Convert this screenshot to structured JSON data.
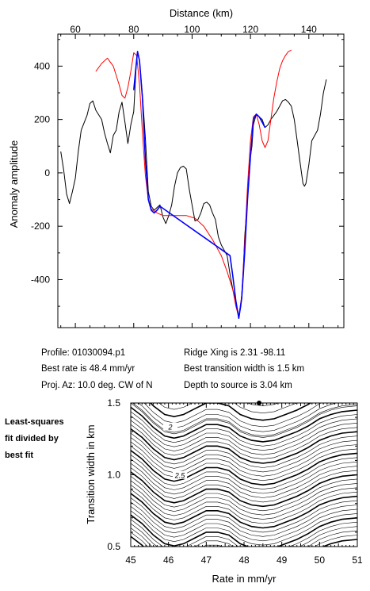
{
  "chart_data": [
    {
      "type": "line",
      "xlabel": "Distance (km)",
      "ylabel": "Anomaly amplitude",
      "xlim": [
        54,
        152
      ],
      "ylim": [
        -580,
        520
      ],
      "x_ticks": [
        60,
        80,
        100,
        120,
        140
      ],
      "y_ticks": [
        400,
        200,
        0,
        -200,
        -400
      ],
      "legend": "none",
      "grid": false,
      "series": [
        {
          "color": "#000000",
          "points": [
            [
              55,
              80
            ],
            [
              56,
              10
            ],
            [
              57,
              -80
            ],
            [
              58,
              -115
            ],
            [
              59,
              -70
            ],
            [
              60,
              -20
            ],
            [
              61,
              80
            ],
            [
              62,
              160
            ],
            [
              64,
              215
            ],
            [
              65,
              260
            ],
            [
              66,
              270
            ],
            [
              67,
              235
            ],
            [
              69,
              200
            ],
            [
              70,
              150
            ],
            [
              71,
              110
            ],
            [
              72,
              75
            ],
            [
              73,
              140
            ],
            [
              74,
              160
            ],
            [
              75,
              230
            ],
            [
              76,
              265
            ],
            [
              77,
              190
            ],
            [
              78,
              110
            ],
            [
              79,
              180
            ],
            [
              80,
              230
            ],
            [
              80.8,
              390
            ],
            [
              81.3,
              455
            ],
            [
              82,
              420
            ],
            [
              83,
              290
            ],
            [
              84,
              130
            ],
            [
              85,
              -70
            ],
            [
              86,
              -125
            ],
            [
              87,
              -140
            ],
            [
              88,
              -130
            ],
            [
              89,
              -120
            ],
            [
              90,
              -165
            ],
            [
              91,
              -190
            ],
            [
              92,
              -160
            ],
            [
              93,
              -120
            ],
            [
              94,
              -50
            ],
            [
              95,
              0
            ],
            [
              96,
              20
            ],
            [
              97,
              25
            ],
            [
              98,
              15
            ],
            [
              99,
              -60
            ],
            [
              100,
              -120
            ],
            [
              101,
              -180
            ],
            [
              102,
              -175
            ],
            [
              103,
              -150
            ],
            [
              104,
              -115
            ],
            [
              105,
              -110
            ],
            [
              106,
              -120
            ],
            [
              107,
              -150
            ],
            [
              108,
              -175
            ],
            [
              109,
              -240
            ],
            [
              110,
              -270
            ],
            [
              111,
              -290
            ],
            [
              112,
              -310
            ],
            [
              113,
              -380
            ],
            [
              114,
              -440
            ],
            [
              115,
              -480
            ],
            [
              115.5,
              -510
            ],
            [
              116,
              -540
            ],
            [
              116.7,
              -500
            ],
            [
              117.5,
              -380
            ],
            [
              118,
              -240
            ],
            [
              119,
              -100
            ],
            [
              120,
              60
            ],
            [
              120.5,
              100
            ],
            [
              121,
              180
            ],
            [
              122,
              220
            ],
            [
              123,
              210
            ],
            [
              124,
              200
            ],
            [
              125,
              170
            ],
            [
              126,
              180
            ],
            [
              127,
              200
            ],
            [
              128,
              215
            ],
            [
              129,
              230
            ],
            [
              130,
              250
            ],
            [
              131,
              270
            ],
            [
              132,
              275
            ],
            [
              133,
              265
            ],
            [
              134,
              250
            ],
            [
              135,
              200
            ],
            [
              136,
              120
            ],
            [
              137,
              40
            ],
            [
              138,
              -40
            ],
            [
              138.5,
              -50
            ],
            [
              139,
              -40
            ],
            [
              140,
              30
            ],
            [
              141,
              120
            ],
            [
              142,
              140
            ],
            [
              143,
              160
            ],
            [
              144,
              220
            ],
            [
              145,
              300
            ],
            [
              146,
              350
            ]
          ]
        },
        {
          "color": "#ff0000",
          "points": [
            [
              67,
              380
            ],
            [
              69,
              410
            ],
            [
              71,
              430
            ],
            [
              73,
              400
            ],
            [
              75,
              330
            ],
            [
              76,
              290
            ],
            [
              77,
              280
            ],
            [
              78,
              320
            ],
            [
              79,
              380
            ],
            [
              80,
              450
            ],
            [
              81,
              440
            ],
            [
              82,
              330
            ],
            [
              83,
              150
            ],
            [
              84,
              -10
            ],
            [
              85,
              -100
            ],
            [
              86,
              -135
            ],
            [
              88,
              -150
            ],
            [
              90,
              -160
            ],
            [
              94,
              -160
            ],
            [
              98,
              -160
            ],
            [
              101,
              -170
            ],
            [
              104,
              -200
            ],
            [
              107,
              -250
            ],
            [
              110,
              -310
            ],
            [
              112,
              -370
            ],
            [
              114,
              -440
            ],
            [
              115,
              -500
            ],
            [
              116,
              -540
            ],
            [
              117,
              -460
            ],
            [
              118,
              -260
            ],
            [
              119,
              -50
            ],
            [
              120,
              120
            ],
            [
              121,
              210
            ],
            [
              122,
              220
            ],
            [
              123,
              180
            ],
            [
              124,
              120
            ],
            [
              125,
              95
            ],
            [
              126,
              120
            ],
            [
              127,
              200
            ],
            [
              128,
              280
            ],
            [
              129,
              340
            ],
            [
              130,
              390
            ],
            [
              131,
              420
            ],
            [
              132,
              440
            ],
            [
              133,
              455
            ],
            [
              134,
              460
            ]
          ]
        },
        {
          "color": "#0000ff",
          "points": [
            [
              80,
              310
            ],
            [
              80.8,
              400
            ],
            [
              81.3,
              455
            ],
            [
              82,
              420
            ],
            [
              83,
              280
            ],
            [
              84,
              50
            ],
            [
              85,
              -100
            ],
            [
              86,
              -140
            ],
            [
              87,
              -150
            ],
            [
              88,
              -140
            ],
            [
              89,
              -125
            ],
            [
              113,
              -310
            ],
            [
              114,
              -390
            ],
            [
              115,
              -480
            ],
            [
              116,
              -545
            ],
            [
              117,
              -470
            ],
            [
              118,
              -300
            ],
            [
              119,
              -100
            ],
            [
              120,
              60
            ],
            [
              120.5,
              130
            ],
            [
              121,
              200
            ],
            [
              122,
              220
            ],
            [
              123,
              210
            ],
            [
              124,
              190
            ],
            [
              125,
              170
            ]
          ]
        }
      ]
    },
    {
      "type": "contour",
      "xlabel": "Rate in mm/yr",
      "ylabel": "Transition width in km",
      "xlim": [
        45,
        51
      ],
      "ylim": [
        0.5,
        1.5
      ],
      "x_ticks": [
        45,
        46,
        47,
        48,
        49,
        50,
        51
      ],
      "y_ticks": [
        0.5,
        1.0,
        1.5
      ],
      "contour_labels": [
        {
          "text": "2",
          "x": 46.05,
          "y": 1.325
        },
        {
          "text": "2.5",
          "x": 46.3,
          "y": 0.988
        }
      ],
      "best_fit": {
        "rate": 48.4,
        "width": 1.5
      },
      "base_curve": [
        [
          45,
          1.5
        ],
        [
          45.3,
          1.44
        ],
        [
          45.6,
          1.36
        ],
        [
          45.9,
          1.3
        ],
        [
          46.15,
          1.285
        ],
        [
          46.4,
          1.3
        ],
        [
          46.7,
          1.34
        ],
        [
          47.0,
          1.38
        ],
        [
          47.3,
          1.38
        ],
        [
          47.6,
          1.36
        ],
        [
          47.9,
          1.3
        ],
        [
          48.2,
          1.27
        ],
        [
          48.5,
          1.26
        ],
        [
          48.8,
          1.27
        ],
        [
          49.1,
          1.3
        ],
        [
          49.4,
          1.33
        ],
        [
          49.7,
          1.37
        ],
        [
          50.0,
          1.42
        ],
        [
          50.3,
          1.45
        ],
        [
          50.6,
          1.47
        ],
        [
          51,
          1.48
        ]
      ],
      "offsets": [
        -0.47,
        -0.42,
        -0.37,
        -0.32,
        -0.27,
        -0.22,
        -0.17,
        -0.12,
        -0.075,
        -0.04,
        -0.01,
        0.0,
        0.03,
        0.06,
        0.09,
        0.12,
        0.15,
        0.18,
        0.21,
        0.24,
        0.27,
        0.3,
        0.33,
        0.36,
        0.39,
        0.42,
        0.45,
        0.48,
        0.51,
        0.54,
        0.57,
        0.6,
        0.63,
        0.66,
        0.69,
        0.72,
        0.75,
        0.78,
        0.81,
        0.84,
        0.87,
        0.9,
        0.93
      ],
      "bold_every": 5
    }
  ],
  "info": {
    "profile": "Profile: 01030094.p1",
    "best_rate": "Best rate is 48.4 mm/yr",
    "proj_az": "Proj. Az: 10.0 deg. CW of N",
    "ridge_xing": "Ridge Xing is 2.31  -98.11",
    "best_transition": "Best transition width is 1.5 km",
    "depth": "Depth to source is    3.04 km"
  },
  "note": [
    "Least-squares",
    "fit divided by",
    "best fit"
  ]
}
